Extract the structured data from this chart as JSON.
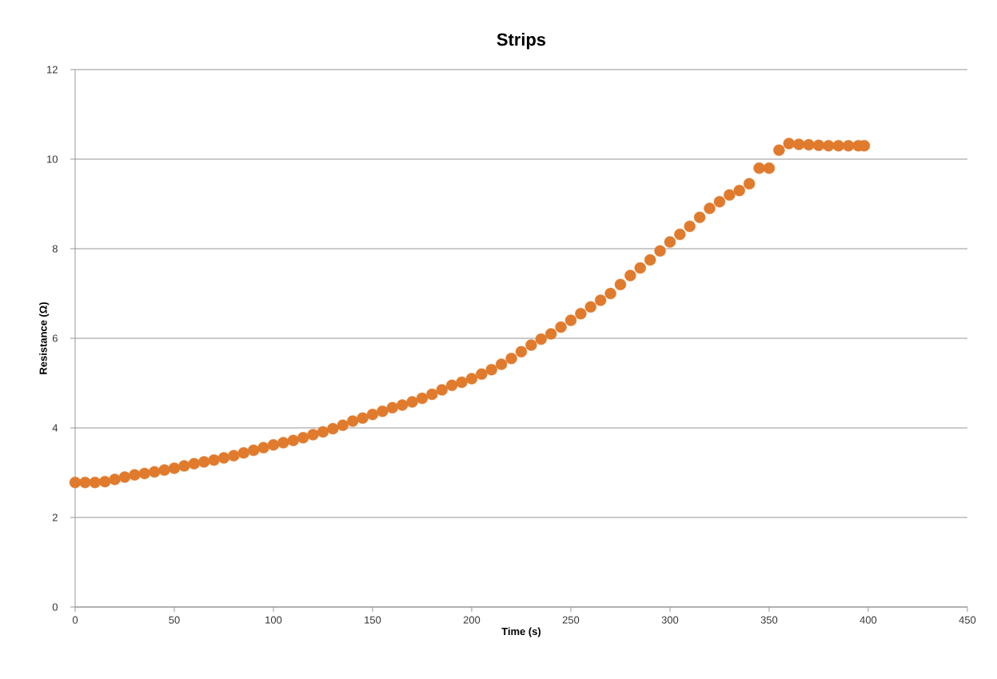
{
  "chart_data": {
    "type": "scatter",
    "title": "Strips",
    "xlabel": "Time (s)",
    "ylabel": "Resistance (Ω)",
    "xlim": [
      0,
      450
    ],
    "xticks": [
      0,
      50,
      100,
      150,
      200,
      250,
      300,
      350,
      400,
      450
    ],
    "ylim": [
      0,
      12
    ],
    "yticks": [
      0,
      2,
      4,
      6,
      8,
      10,
      12
    ],
    "grid": "y",
    "marker": "circle",
    "series": [
      {
        "color": "#e07b2e",
        "x": [
          0,
          5,
          10,
          15,
          20,
          25,
          30,
          35,
          40,
          45,
          50,
          55,
          60,
          65,
          70,
          75,
          80,
          85,
          90,
          95,
          100,
          105,
          110,
          115,
          120,
          125,
          130,
          135,
          140,
          145,
          150,
          155,
          160,
          165,
          170,
          175,
          180,
          185,
          190,
          195,
          200,
          205,
          210,
          215,
          220,
          225,
          230,
          235,
          240,
          245,
          250,
          255,
          260,
          265,
          270,
          275,
          280,
          285,
          290,
          295,
          300,
          305,
          310,
          315,
          320,
          325,
          330,
          335,
          340,
          345,
          350,
          355,
          360,
          365,
          370,
          375,
          380,
          385,
          390,
          395,
          398
        ],
        "values": [
          2.78,
          2.78,
          2.78,
          2.8,
          2.85,
          2.9,
          2.95,
          2.98,
          3.02,
          3.06,
          3.1,
          3.15,
          3.2,
          3.24,
          3.28,
          3.33,
          3.38,
          3.44,
          3.5,
          3.56,
          3.62,
          3.67,
          3.72,
          3.78,
          3.85,
          3.91,
          3.98,
          4.06,
          4.15,
          4.22,
          4.3,
          4.37,
          4.45,
          4.51,
          4.58,
          4.66,
          4.75,
          4.85,
          4.95,
          5.02,
          5.1,
          5.2,
          5.3,
          5.42,
          5.55,
          5.7,
          5.85,
          5.98,
          6.1,
          6.25,
          6.4,
          6.55,
          6.7,
          6.85,
          7.0,
          7.2,
          7.4,
          7.57,
          7.75,
          7.95,
          8.15,
          8.32,
          8.5,
          8.7,
          8.9,
          9.05,
          9.2,
          9.3,
          9.45,
          9.8,
          9.8,
          10.2,
          10.35,
          10.33,
          10.32,
          10.31,
          10.3,
          10.3,
          10.3,
          10.3,
          10.3
        ]
      }
    ]
  }
}
